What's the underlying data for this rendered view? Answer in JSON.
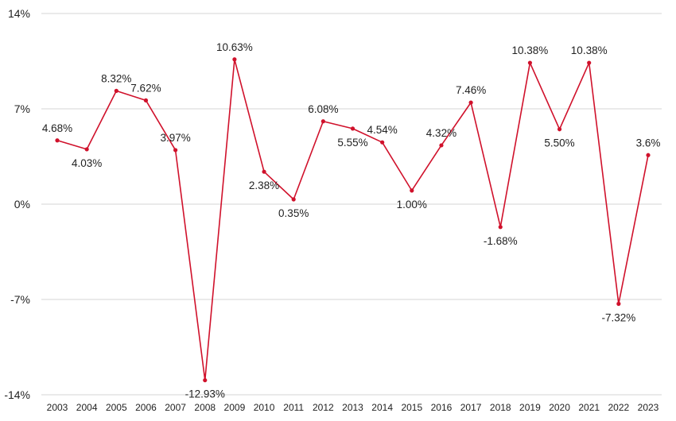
{
  "chart_data": {
    "type": "line",
    "title": "",
    "xlabel": "",
    "ylabel": "",
    "categories": [
      "2003",
      "2004",
      "2005",
      "2006",
      "2007",
      "2008",
      "2009",
      "2010",
      "2011",
      "2012",
      "2013",
      "2014",
      "2015",
      "2016",
      "2017",
      "2018",
      "2019",
      "2020",
      "2021",
      "2022",
      "2023"
    ],
    "series": [
      {
        "values": [
          4.68,
          4.03,
          8.32,
          7.62,
          3.97,
          -12.93,
          10.63,
          2.38,
          0.35,
          6.08,
          5.55,
          4.54,
          1.0,
          4.32,
          7.46,
          -1.68,
          10.38,
          5.5,
          10.38,
          -7.32,
          3.6
        ],
        "labels": [
          "4.68%",
          "4.03%",
          "8.32%",
          "7.62%",
          "3.97%",
          "-12.93%",
          "10.63%",
          "2.38%",
          "0.35%",
          "6.08%",
          "5.55%",
          "4.54%",
          "1.00%",
          "4.32%",
          "7.46%",
          "-1.68%",
          "10.38%",
          "5.50%",
          "10.38%",
          "-7.32%",
          "3.6%"
        ],
        "label_position": [
          "above",
          "below",
          "above",
          "above",
          "above",
          "below",
          "above",
          "below",
          "below",
          "above",
          "below",
          "above",
          "below",
          "above",
          "above",
          "below",
          "above",
          "below",
          "above",
          "below",
          "above"
        ],
        "color": "#d0112b"
      }
    ],
    "ylim": [
      -14,
      14
    ],
    "yticks": [
      14,
      7,
      0,
      -7,
      -14
    ],
    "ytick_labels": [
      "14%",
      "7%",
      "0%",
      "-7%",
      "-14%"
    ],
    "grid": true,
    "legend": "none"
  }
}
